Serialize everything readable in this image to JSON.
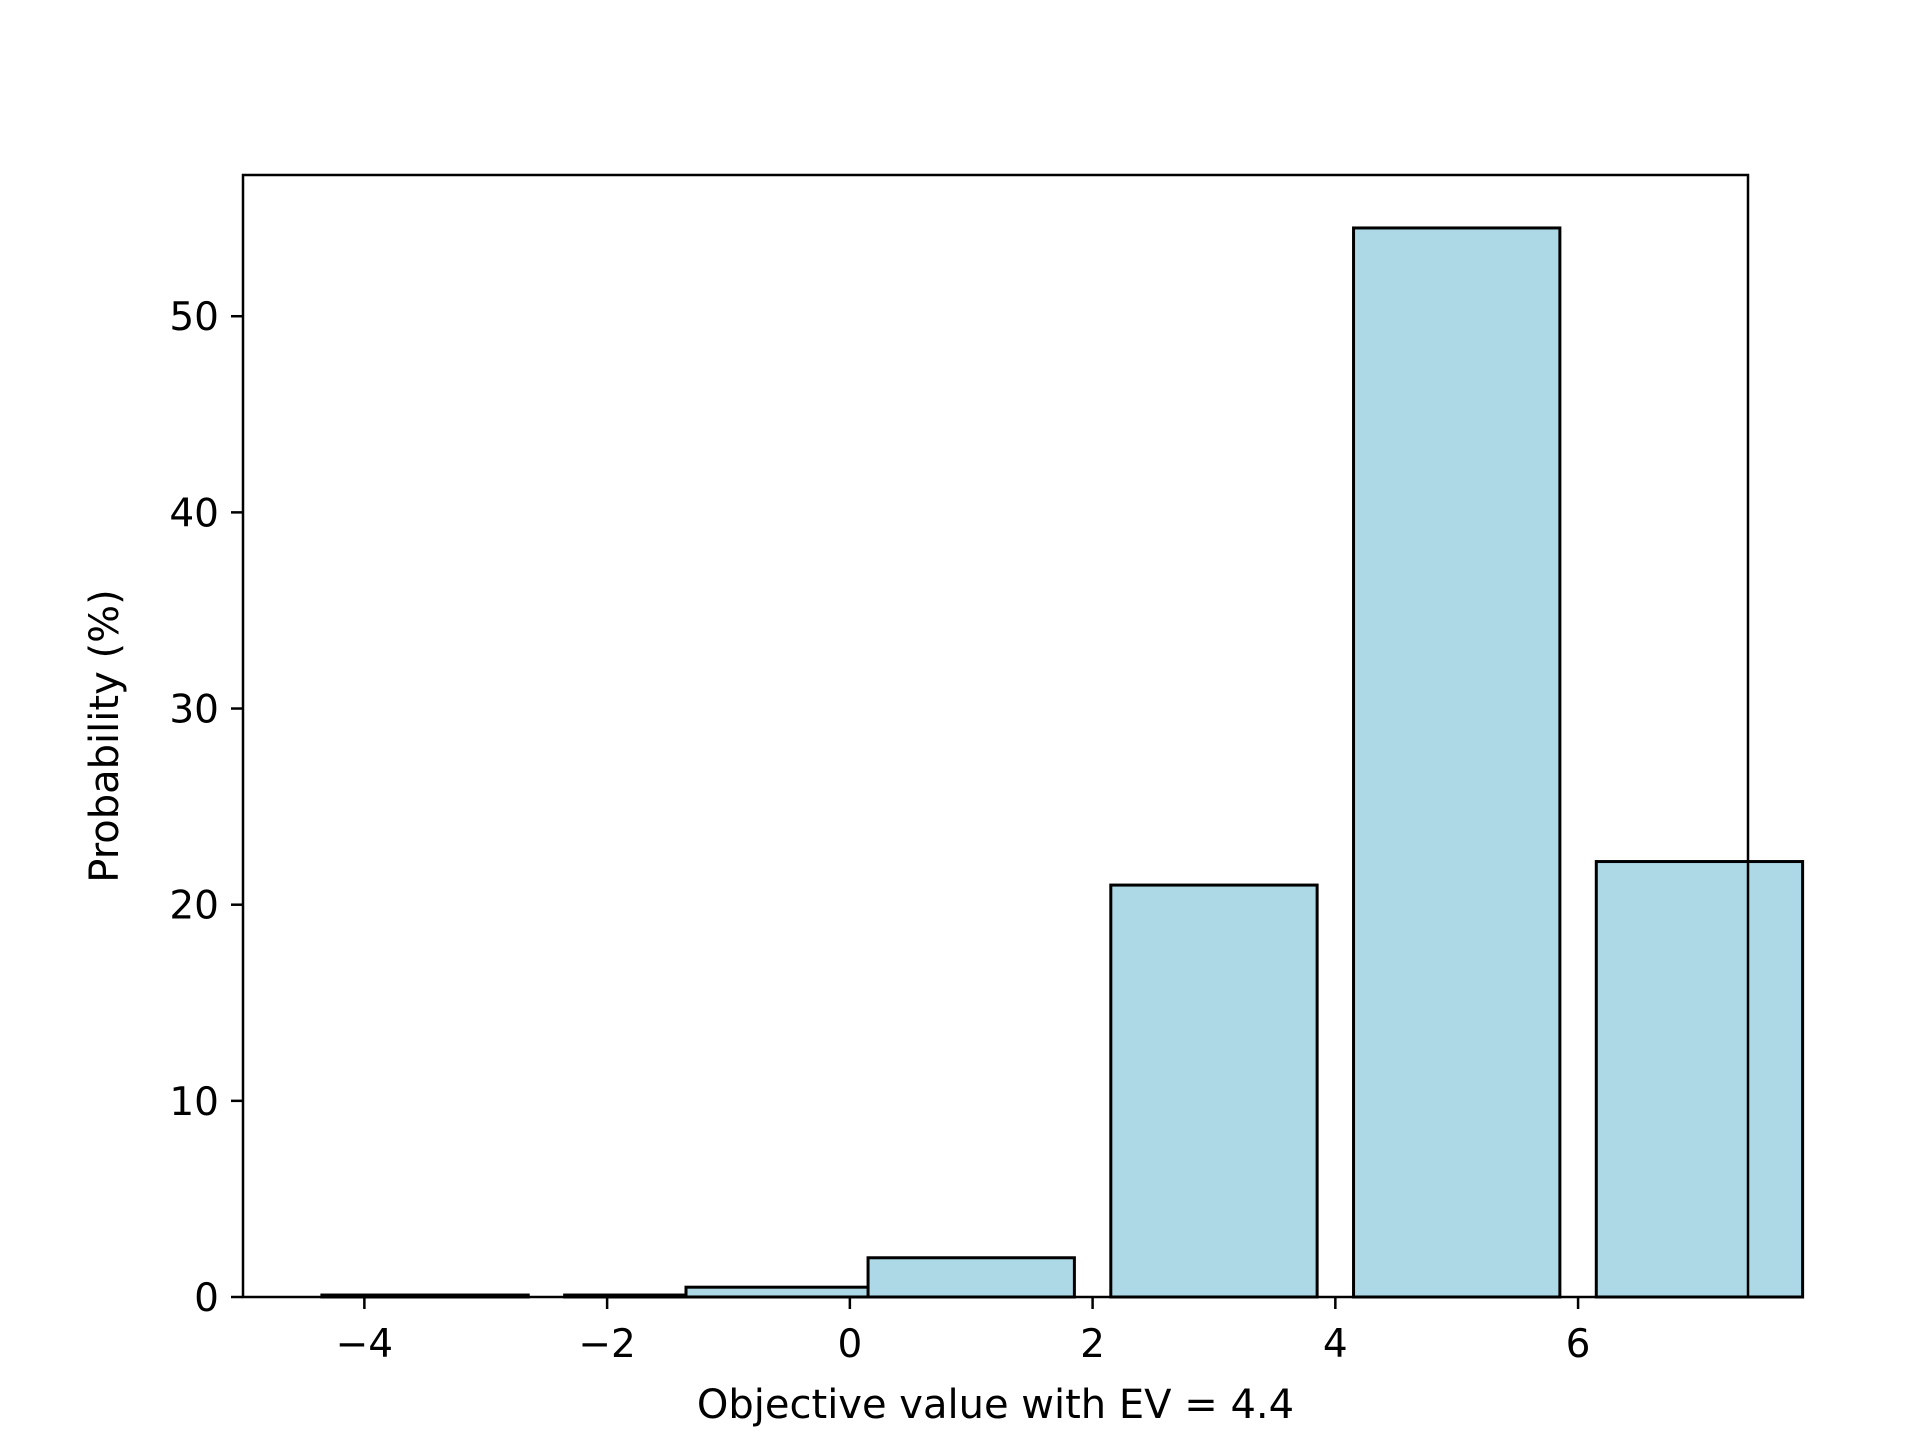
{
  "chart_data": {
    "type": "bar",
    "title": "",
    "xlabel": "Objective value with EV = 4.4",
    "ylabel": "Probability (%)",
    "x": [
      -3.5,
      -1.5,
      -0.5,
      1.0,
      3.0,
      5.0,
      7.0
    ],
    "values": [
      0.1,
      0.1,
      0.5,
      2.0,
      21.0,
      54.5,
      22.2
    ],
    "xlim": [
      -5.0,
      7.4
    ],
    "ylim": [
      0,
      57.2
    ],
    "xticks": [
      -4,
      -2,
      0,
      2,
      4,
      6
    ],
    "xtick_labels": [
      "−4",
      "−2",
      "0",
      "2",
      "4",
      "6"
    ],
    "yticks": [
      0,
      10,
      20,
      30,
      40,
      50
    ],
    "ytick_labels": [
      "0",
      "10",
      "20",
      "30",
      "40",
      "50"
    ],
    "grid": false,
    "colors": {
      "bar_fill": "#add8e6",
      "bar_edge": "#000000",
      "axes": "#000000",
      "background": "#ffffff"
    }
  }
}
